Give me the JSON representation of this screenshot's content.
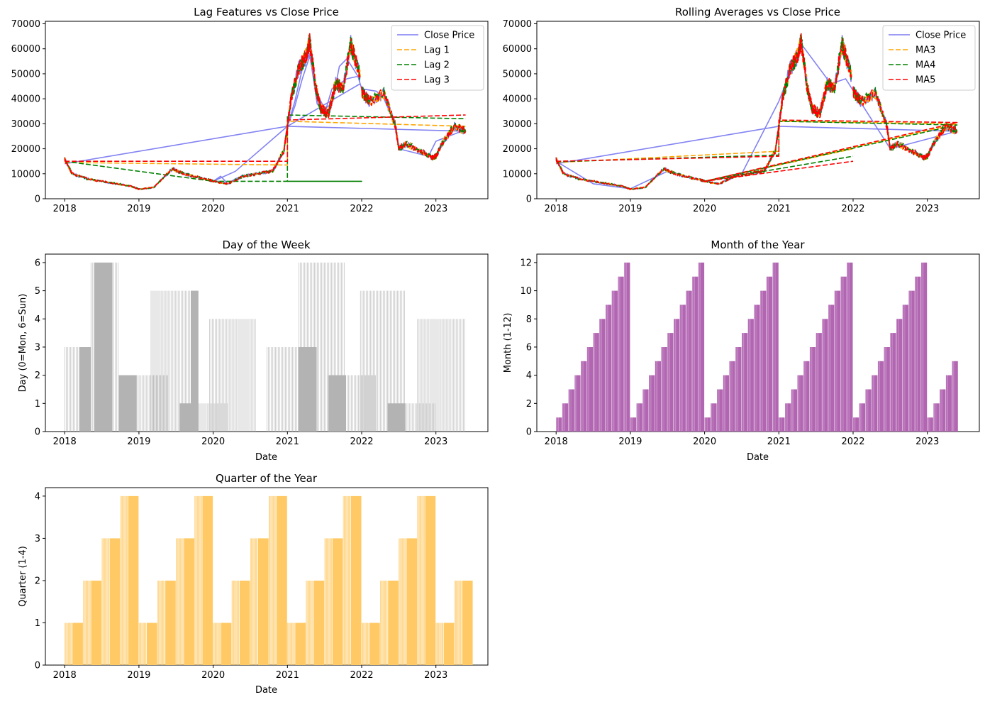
{
  "chart_data": [
    {
      "id": "lag",
      "type": "line",
      "title": "Lag Features vs Close Price",
      "xlabel": "",
      "ylabel": "",
      "xlim": [
        2017.74,
        2023.7
      ],
      "ylim": [
        0,
        71000
      ],
      "xticks": [
        2018,
        2019,
        2020,
        2021,
        2022,
        2023
      ],
      "xtick_labels": [
        "2018",
        "2019",
        "2020",
        "2021",
        "2022",
        "2023"
      ],
      "yticks": [
        0,
        10000,
        20000,
        30000,
        40000,
        50000,
        60000,
        70000
      ],
      "ytick_labels": [
        "0",
        "10000",
        "20000",
        "30000",
        "40000",
        "50000",
        "60000",
        "70000"
      ],
      "legend": "upper right",
      "series": [
        {
          "name": "Close Price",
          "color": "#7b7bf2",
          "dash": "solid",
          "x": [
            2018.0,
            2021.0,
            2023.4,
            2023.3,
            2023.0,
            2022.9,
            2022.5,
            2022.45,
            2022.3,
            2022.2,
            2022.0,
            2021.95,
            2021.8,
            2021.7,
            2021.6,
            2021.5,
            2021.4,
            2021.3,
            2021.2,
            2021.1,
            2021.0,
            2020.95,
            2020.8,
            2020.6,
            2020.4,
            2020.3,
            2020.2,
            2020.1,
            2020.0,
            2020.3,
            2021.0,
            2021.98,
            2021.95,
            2021.8,
            2021.6,
            2021.5,
            2021.4,
            2021.3,
            2021.2,
            2021.1,
            2021.0
          ],
          "y": [
            14000,
            29000,
            27000,
            26500,
            23000,
            17000,
            20000,
            30000,
            40000,
            43000,
            44000,
            49000,
            56000,
            53000,
            38000,
            36000,
            42000,
            57000,
            48000,
            37000,
            29000,
            19000,
            11000,
            10000,
            9000,
            8000,
            6000,
            9000,
            7000,
            11000,
            29000,
            46000,
            49000,
            48000,
            44000,
            34000,
            38000,
            58000,
            52000,
            39000,
            29000
          ]
        },
        {
          "name": "Lag 1",
          "color": "#ffa500",
          "dash": "dashed",
          "x": [
            2018.0,
            2021.0,
            2021.0,
            2023.4
          ],
          "y": [
            14500,
            13500,
            31000,
            29000
          ]
        },
        {
          "name": "Lag 2",
          "color": "#008000",
          "dash": "dashed",
          "x": [
            2018.0,
            2020.0,
            2022.0,
            2021.0,
            2021.0,
            2023.4
          ],
          "y": [
            15000,
            7000,
            7000,
            7000,
            33500,
            32000
          ]
        },
        {
          "name": "Lag 3",
          "color": "#ff0000",
          "dash": "dashed",
          "x": [
            2018.0,
            2021.0,
            2021.0,
            2023.4
          ],
          "y": [
            15000,
            15000,
            31500,
            33500
          ]
        }
      ]
    },
    {
      "id": "ma",
      "type": "line",
      "title": "Rolling Averages vs Close Price",
      "xlabel": "",
      "ylabel": "",
      "xlim": [
        2017.74,
        2023.7
      ],
      "ylim": [
        0,
        71000
      ],
      "xticks": [
        2018,
        2019,
        2020,
        2021,
        2022,
        2023
      ],
      "xtick_labels": [
        "2018",
        "2019",
        "2020",
        "2021",
        "2022",
        "2023"
      ],
      "yticks": [
        0,
        10000,
        20000,
        30000,
        40000,
        50000,
        60000,
        70000
      ],
      "ytick_labels": [
        "0",
        "10000",
        "20000",
        "30000",
        "40000",
        "50000",
        "60000",
        "70000"
      ],
      "legend": "upper right",
      "series": [
        {
          "name": "Close Price",
          "color": "#7b7bf2",
          "dash": "solid",
          "x": [
            2018.0,
            2021.0,
            2023.4,
            2022.5,
            2021.9,
            2021.7,
            2021.3,
            2021.0,
            2020.5,
            2020.0,
            2019.5,
            2019.0,
            2018.5,
            2018.0
          ],
          "y": [
            14000,
            29000,
            27000,
            20000,
            48000,
            46000,
            62000,
            39000,
            10000,
            7000,
            11000,
            4000,
            6000,
            15000
          ]
        },
        {
          "name": "MA3",
          "color": "#ffa500",
          "dash": "dashed",
          "x": [
            2018.0,
            2021.0,
            2021.0,
            2023.4,
            2020.0,
            2022.0
          ],
          "y": [
            14500,
            19000,
            31000,
            30000,
            7000,
            20000
          ]
        },
        {
          "name": "MA4",
          "color": "#008000",
          "dash": "dashed",
          "x": [
            2018.0,
            2021.0,
            2021.0,
            2023.4,
            2020.0,
            2022.0
          ],
          "y": [
            14800,
            17500,
            31000,
            29500,
            7000,
            17000
          ]
        },
        {
          "name": "MA5",
          "color": "#ff0000",
          "dash": "dashed",
          "x": [
            2018.0,
            2021.0,
            2021.0,
            2023.4,
            2020.0,
            2022.0
          ],
          "y": [
            15000,
            17000,
            31500,
            30500,
            7000,
            15000
          ]
        }
      ]
    },
    {
      "id": "dow",
      "type": "bar",
      "title": "Day of the Week",
      "xlabel": "Date",
      "ylabel": "Day (0=Mon, 6=Sun)",
      "color": "#b3b3b3",
      "xlim": [
        2017.74,
        2023.7
      ],
      "ylim": [
        0,
        6.3
      ],
      "xticks": [
        2018,
        2019,
        2020,
        2021,
        2022,
        2023
      ],
      "xtick_labels": [
        "2018",
        "2019",
        "2020",
        "2021",
        "2022",
        "2023"
      ],
      "yticks": [
        0,
        1,
        2,
        3,
        4,
        5,
        6
      ],
      "ytick_labels": [
        "0",
        "1",
        "2",
        "3",
        "4",
        "5",
        "6"
      ],
      "segments": [
        {
          "start": 2018.0,
          "end": 2018.35,
          "value": 3,
          "solid_from": 2018.2
        },
        {
          "start": 2018.35,
          "end": 2018.73,
          "value": 6,
          "solid_from": 2018.4
        },
        {
          "start": 2018.73,
          "end": 2019.4,
          "value": 2,
          "solid_from": 2018.73
        },
        {
          "start": 2019.16,
          "end": 2019.8,
          "value": 5,
          "solid_from": 2019.7
        },
        {
          "start": 2019.55,
          "end": 2020.2,
          "value": 1,
          "solid_from": 2019.55
        },
        {
          "start": 2019.95,
          "end": 2020.58,
          "value": 4,
          "solid_from": 2020.6
        },
        {
          "start": 2020.72,
          "end": 2021.4,
          "value": 3,
          "solid_from": 2021.15
        },
        {
          "start": 2021.15,
          "end": 2021.78,
          "value": 6,
          "solid_from": 2021.8
        },
        {
          "start": 2021.55,
          "end": 2022.2,
          "value": 2,
          "solid_from": 2021.55
        },
        {
          "start": 2021.98,
          "end": 2022.58,
          "value": 5,
          "solid_from": 2022.6
        },
        {
          "start": 2022.35,
          "end": 2023.0,
          "value": 1,
          "solid_from": 2022.35
        },
        {
          "start": 2022.75,
          "end": 2023.4,
          "value": 4,
          "solid_from": 2023.5
        }
      ]
    },
    {
      "id": "month",
      "type": "bar",
      "title": "Month of the Year",
      "xlabel": "Date",
      "ylabel": "Month (1-12)",
      "color": "#b266b2",
      "xlim": [
        2017.74,
        2023.7
      ],
      "ylim": [
        0,
        12.6
      ],
      "xticks": [
        2018,
        2019,
        2020,
        2021,
        2022,
        2023
      ],
      "xtick_labels": [
        "2018",
        "2019",
        "2020",
        "2021",
        "2022",
        "2023"
      ],
      "yticks": [
        0,
        2,
        4,
        6,
        8,
        10,
        12
      ],
      "ytick_labels": [
        "0",
        "2",
        "4",
        "6",
        "8",
        "10",
        "12"
      ],
      "start_year": 2018,
      "end_year": 2023,
      "end_month": 5
    },
    {
      "id": "quarter",
      "type": "bar",
      "title": "Quarter of the Year",
      "xlabel": "Date",
      "ylabel": "Quarter (1-4)",
      "color": "#ffca66",
      "xlim": [
        2017.74,
        2023.7
      ],
      "ylim": [
        0,
        4.2
      ],
      "xticks": [
        2018,
        2019,
        2020,
        2021,
        2022,
        2023
      ],
      "xtick_labels": [
        "2018",
        "2019",
        "2020",
        "2021",
        "2022",
        "2023"
      ],
      "yticks": [
        0,
        1,
        2,
        3,
        4
      ],
      "ytick_labels": [
        "0",
        "1",
        "2",
        "3",
        "4"
      ],
      "start_year": 2018,
      "end_year": 2023,
      "end_quarter": 2
    }
  ]
}
